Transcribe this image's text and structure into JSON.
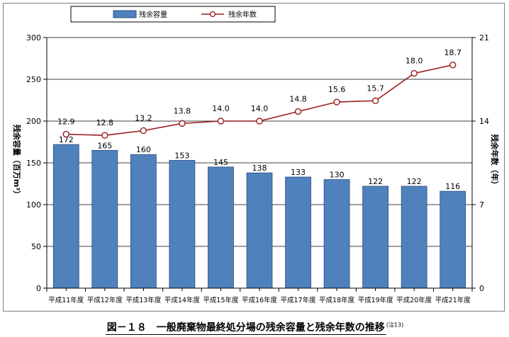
{
  "chart_data": {
    "type": "bar+line",
    "categories": [
      "平成11年度",
      "平成12年度",
      "平成13年度",
      "平成14年度",
      "平成15年度",
      "平成16年度",
      "平成17年度",
      "平成18年度",
      "平成19年度",
      "平成20年度",
      "平成21年度"
    ],
    "series": [
      {
        "name": "残余容量",
        "type": "bar",
        "axis": "left",
        "values": [
          172,
          165,
          160,
          153,
          145,
          138,
          133,
          130,
          122,
          122,
          116
        ],
        "labels": [
          "172",
          "165",
          "160",
          "153",
          "145",
          "138",
          "133",
          "130",
          "122",
          "122",
          "116"
        ]
      },
      {
        "name": "残余年数",
        "type": "line",
        "axis": "right",
        "values": [
          12.9,
          12.8,
          13.2,
          13.8,
          14.0,
          14.0,
          14.8,
          15.6,
          15.7,
          18.0,
          18.7
        ],
        "labels": [
          "12.9",
          "12.8",
          "13.2",
          "13.8",
          "14.0",
          "14.0",
          "14.8",
          "15.6",
          "15.7",
          "18.0",
          "18.7"
        ]
      }
    ],
    "ylabel_left": "残余容量（百万m³）",
    "ylabel_right": "残余年数（年）",
    "ylim_left": [
      0,
      300
    ],
    "ylim_right": [
      0,
      21
    ],
    "yticks_left": [
      "0",
      "50",
      "100",
      "150",
      "200",
      "250",
      "300"
    ],
    "yticks_right": [
      "0",
      "7",
      "14",
      "21"
    ],
    "grid": true,
    "legend_position": "top",
    "colors": {
      "bar": "#4f81bd",
      "bar_edge": "#2f4f7f",
      "line": "#9b1c1c",
      "marker_fill": "#ffffff",
      "grid": "#000000"
    }
  },
  "caption": {
    "main": "図－１８　一般廃棄物最終処分場の残余容量と残余年数の推移",
    "note": "(注13)"
  }
}
